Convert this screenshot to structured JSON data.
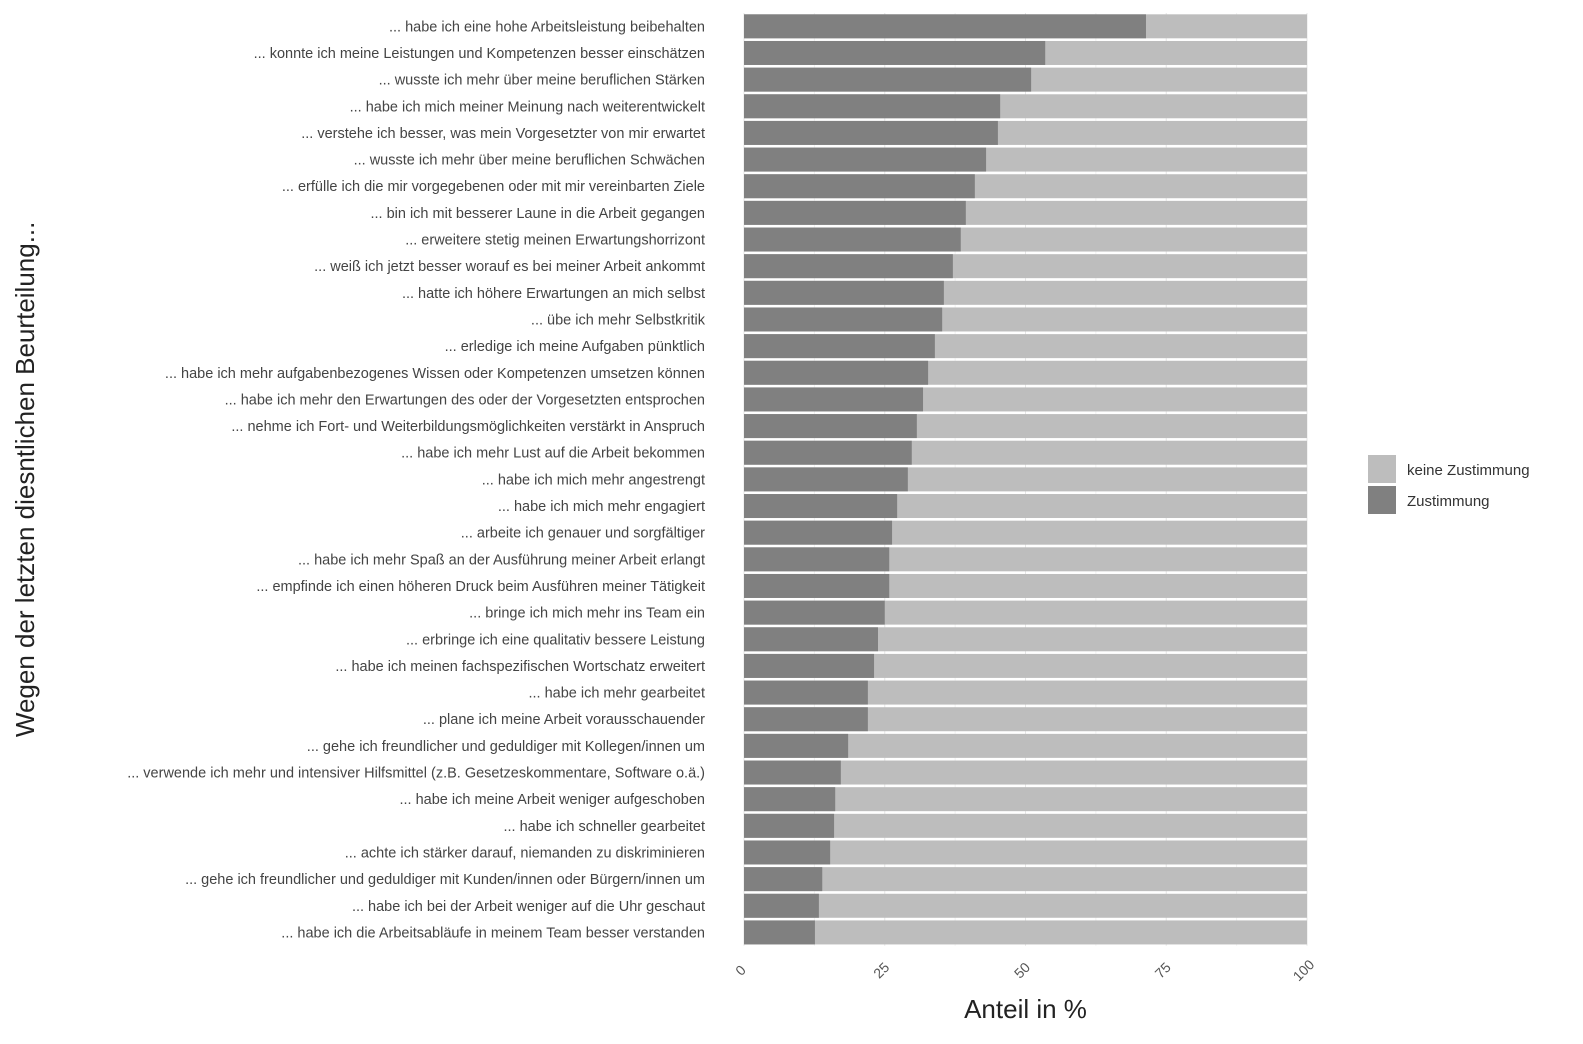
{
  "chart_data": {
    "type": "bar",
    "orientation": "horizontal-stacked",
    "xlabel": "Anteil in %",
    "ylabel": "Wegen der letzten diesntlichen Beurteilung...",
    "xlim": [
      0,
      100
    ],
    "xticks": [
      "0",
      "25",
      "50",
      "75",
      "100"
    ],
    "legend": {
      "position": "right",
      "entries": [
        {
          "name": "keine Zustimmung",
          "color": "#bdbdbd"
        },
        {
          "name": "Zustimmung",
          "color": "#808080"
        }
      ]
    },
    "categories": [
      "... habe ich eine hohe Arbeitsleistung beibehalten",
      "... konnte ich meine Leistungen und Kompetenzen besser einschätzen",
      "... wusste ich mehr über meine beruflichen Stärken",
      "... habe ich mich meiner Meinung nach weiterentwickelt",
      "... verstehe ich besser, was mein Vorgesetzter von mir erwartet",
      "... wusste ich mehr über meine beruflichen Schwächen",
      "... erfülle ich die mir vorgegebenen oder mit mir vereinbarten Ziele",
      "... bin ich mit besserer Laune in die Arbeit gegangen",
      "... erweitere stetig meinen Erwartungshorrizont",
      "... weiß ich jetzt besser worauf es bei meiner Arbeit ankommt",
      "... hatte ich höhere Erwartungen an mich selbst",
      "... übe ich mehr Selbstkritik",
      "... erledige ich meine Aufgaben pünktlich",
      "... habe ich mehr aufgabenbezogenes Wissen oder Kompetenzen umsetzen können",
      "... habe ich mehr den Erwartungen des oder der Vorgesetzten entsprochen",
      "... nehme ich Fort- und Weiterbildungsmöglichkeiten verstärkt in Anspruch",
      "... habe ich mehr Lust auf die Arbeit bekommen",
      "... habe ich mich mehr angestrengt",
      "... habe ich mich mehr engagiert",
      "... arbeite ich genauer und sorgfältiger",
      "... habe ich mehr Spaß an der Ausführung meiner Arbeit erlangt",
      "... empfinde ich einen höheren Druck beim Ausführen meiner Tätigkeit",
      "... bringe ich mich mehr ins Team ein",
      "... erbringe ich eine qualitativ bessere Leistung",
      "... habe ich meinen fachspezifischen Wortschatz erweitert",
      "... habe ich mehr gearbeitet",
      "... plane ich meine Arbeit vorausschauender",
      "... gehe ich freundlicher und geduldiger mit Kollegen/innen um",
      "... verwende ich mehr und intensiver Hilfsmittel (z.B. Gesetzeskommentare, Software o.ä.)",
      "... habe ich meine Arbeit weniger aufgeschoben",
      "... habe ich schneller gearbeitet",
      "... achte ich stärker darauf, niemanden zu diskriminieren",
      "... gehe ich freundlicher und geduldiger mit Kunden/innen oder  Bürgern/innen um",
      "... habe ich bei der Arbeit weniger auf die Uhr geschaut",
      "... habe ich die Arbeitsabläufe in meinem Team besser verstanden"
    ],
    "series": [
      {
        "name": "Zustimmung",
        "values": [
          71.4,
          53.5,
          51.0,
          45.5,
          45.1,
          43.0,
          41.0,
          39.4,
          38.5,
          37.1,
          35.5,
          35.2,
          33.9,
          32.7,
          31.8,
          30.7,
          29.8,
          29.1,
          27.2,
          26.3,
          25.8,
          25.8,
          25.0,
          23.8,
          23.1,
          22.0,
          22.0,
          18.5,
          17.2,
          16.2,
          16.0,
          15.3,
          13.9,
          13.3,
          12.6
        ]
      },
      {
        "name": "keine Zustimmung",
        "values": "remainder to 100"
      }
    ]
  }
}
